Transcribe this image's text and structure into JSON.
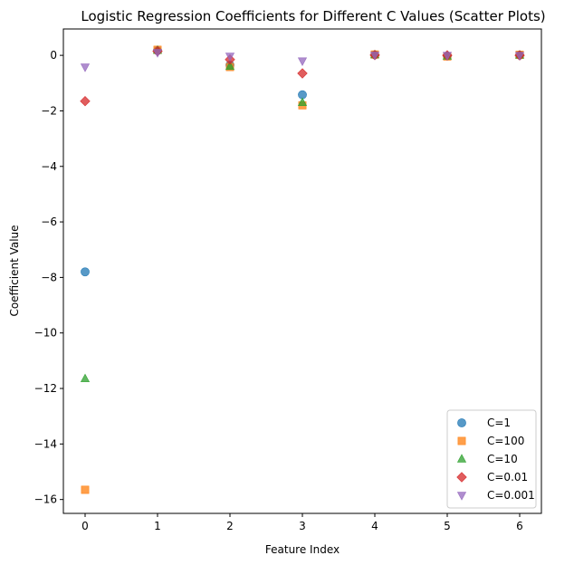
{
  "chart_data": {
    "type": "scatter",
    "title": "Logistic Regression Coefficients for Different C Values (Scatter Plots)",
    "xlabel": "Feature Index",
    "ylabel": "Coefficient Value",
    "xlim": [
      -0.3,
      6.3
    ],
    "ylim": [
      -16.5,
      0.95
    ],
    "xticks": [
      0,
      1,
      2,
      3,
      4,
      5,
      6
    ],
    "xtick_labels": [
      "0",
      "1",
      "2",
      "3",
      "4",
      "5",
      "6"
    ],
    "yticks": [
      0,
      -2,
      -4,
      -6,
      -8,
      -10,
      -12,
      -14,
      -16
    ],
    "ytick_labels": [
      "0",
      "−2",
      "−4",
      "−6",
      "−8",
      "−10",
      "−12",
      "−14",
      "−16"
    ],
    "grid": false,
    "legend_position": "lower-right",
    "series": [
      {
        "name": "C=1",
        "marker": "circle",
        "color": "#1f77b4",
        "x": [
          0,
          1,
          2,
          3,
          4,
          5,
          6
        ],
        "y": [
          -7.8,
          0.17,
          -0.35,
          -1.42,
          0.02,
          -0.02,
          0.01
        ]
      },
      {
        "name": "C=100",
        "marker": "square",
        "color": "#ff7f0e",
        "x": [
          0,
          1,
          2,
          3,
          4,
          5,
          6
        ],
        "y": [
          -15.65,
          0.2,
          -0.42,
          -1.8,
          0.03,
          -0.04,
          0.02
        ]
      },
      {
        "name": "C=10",
        "marker": "triangle-up",
        "color": "#2ca02c",
        "x": [
          0,
          1,
          2,
          3,
          4,
          5,
          6
        ],
        "y": [
          -11.65,
          0.18,
          -0.4,
          -1.7,
          0.02,
          -0.03,
          0.01
        ]
      },
      {
        "name": "C=0.01",
        "marker": "diamond",
        "color": "#d62728",
        "x": [
          0,
          1,
          2,
          3,
          4,
          5,
          6
        ],
        "y": [
          -1.65,
          0.15,
          -0.15,
          -0.65,
          0.01,
          0.0,
          0.0
        ]
      },
      {
        "name": "C=0.001",
        "marker": "triangle-down",
        "color": "#9467bd",
        "x": [
          0,
          1,
          2,
          3,
          4,
          5,
          6
        ],
        "y": [
          -0.42,
          0.1,
          -0.03,
          -0.2,
          0.01,
          0.0,
          0.0
        ]
      }
    ]
  }
}
